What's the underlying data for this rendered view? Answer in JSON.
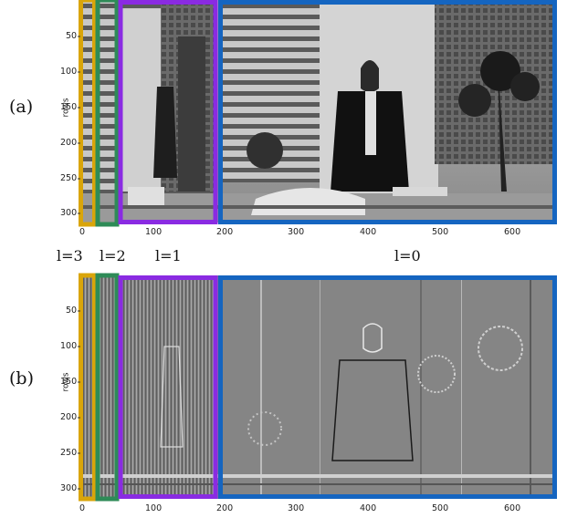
{
  "figure": {
    "panel_a": {
      "label": "(a)",
      "ylabel": "rows",
      "yticks": [
        "50",
        "100",
        "150",
        "200",
        "250",
        "300"
      ],
      "xticks": [
        "0",
        "100",
        "200",
        "300",
        "400",
        "500",
        "600"
      ]
    },
    "panel_b": {
      "label": "(b)",
      "ylabel": "rows",
      "yticks": [
        "50",
        "100",
        "150",
        "200",
        "250",
        "300"
      ],
      "xticks": [
        "0",
        "100",
        "200",
        "300",
        "400",
        "500",
        "600"
      ]
    },
    "levels": [
      "l=3",
      "l=2",
      "l=1",
      "l=0"
    ],
    "colors": {
      "level3": "#d9a50a",
      "level2": "#2e8b57",
      "level1": "#8a2be2",
      "level0": "#1565c0"
    }
  }
}
